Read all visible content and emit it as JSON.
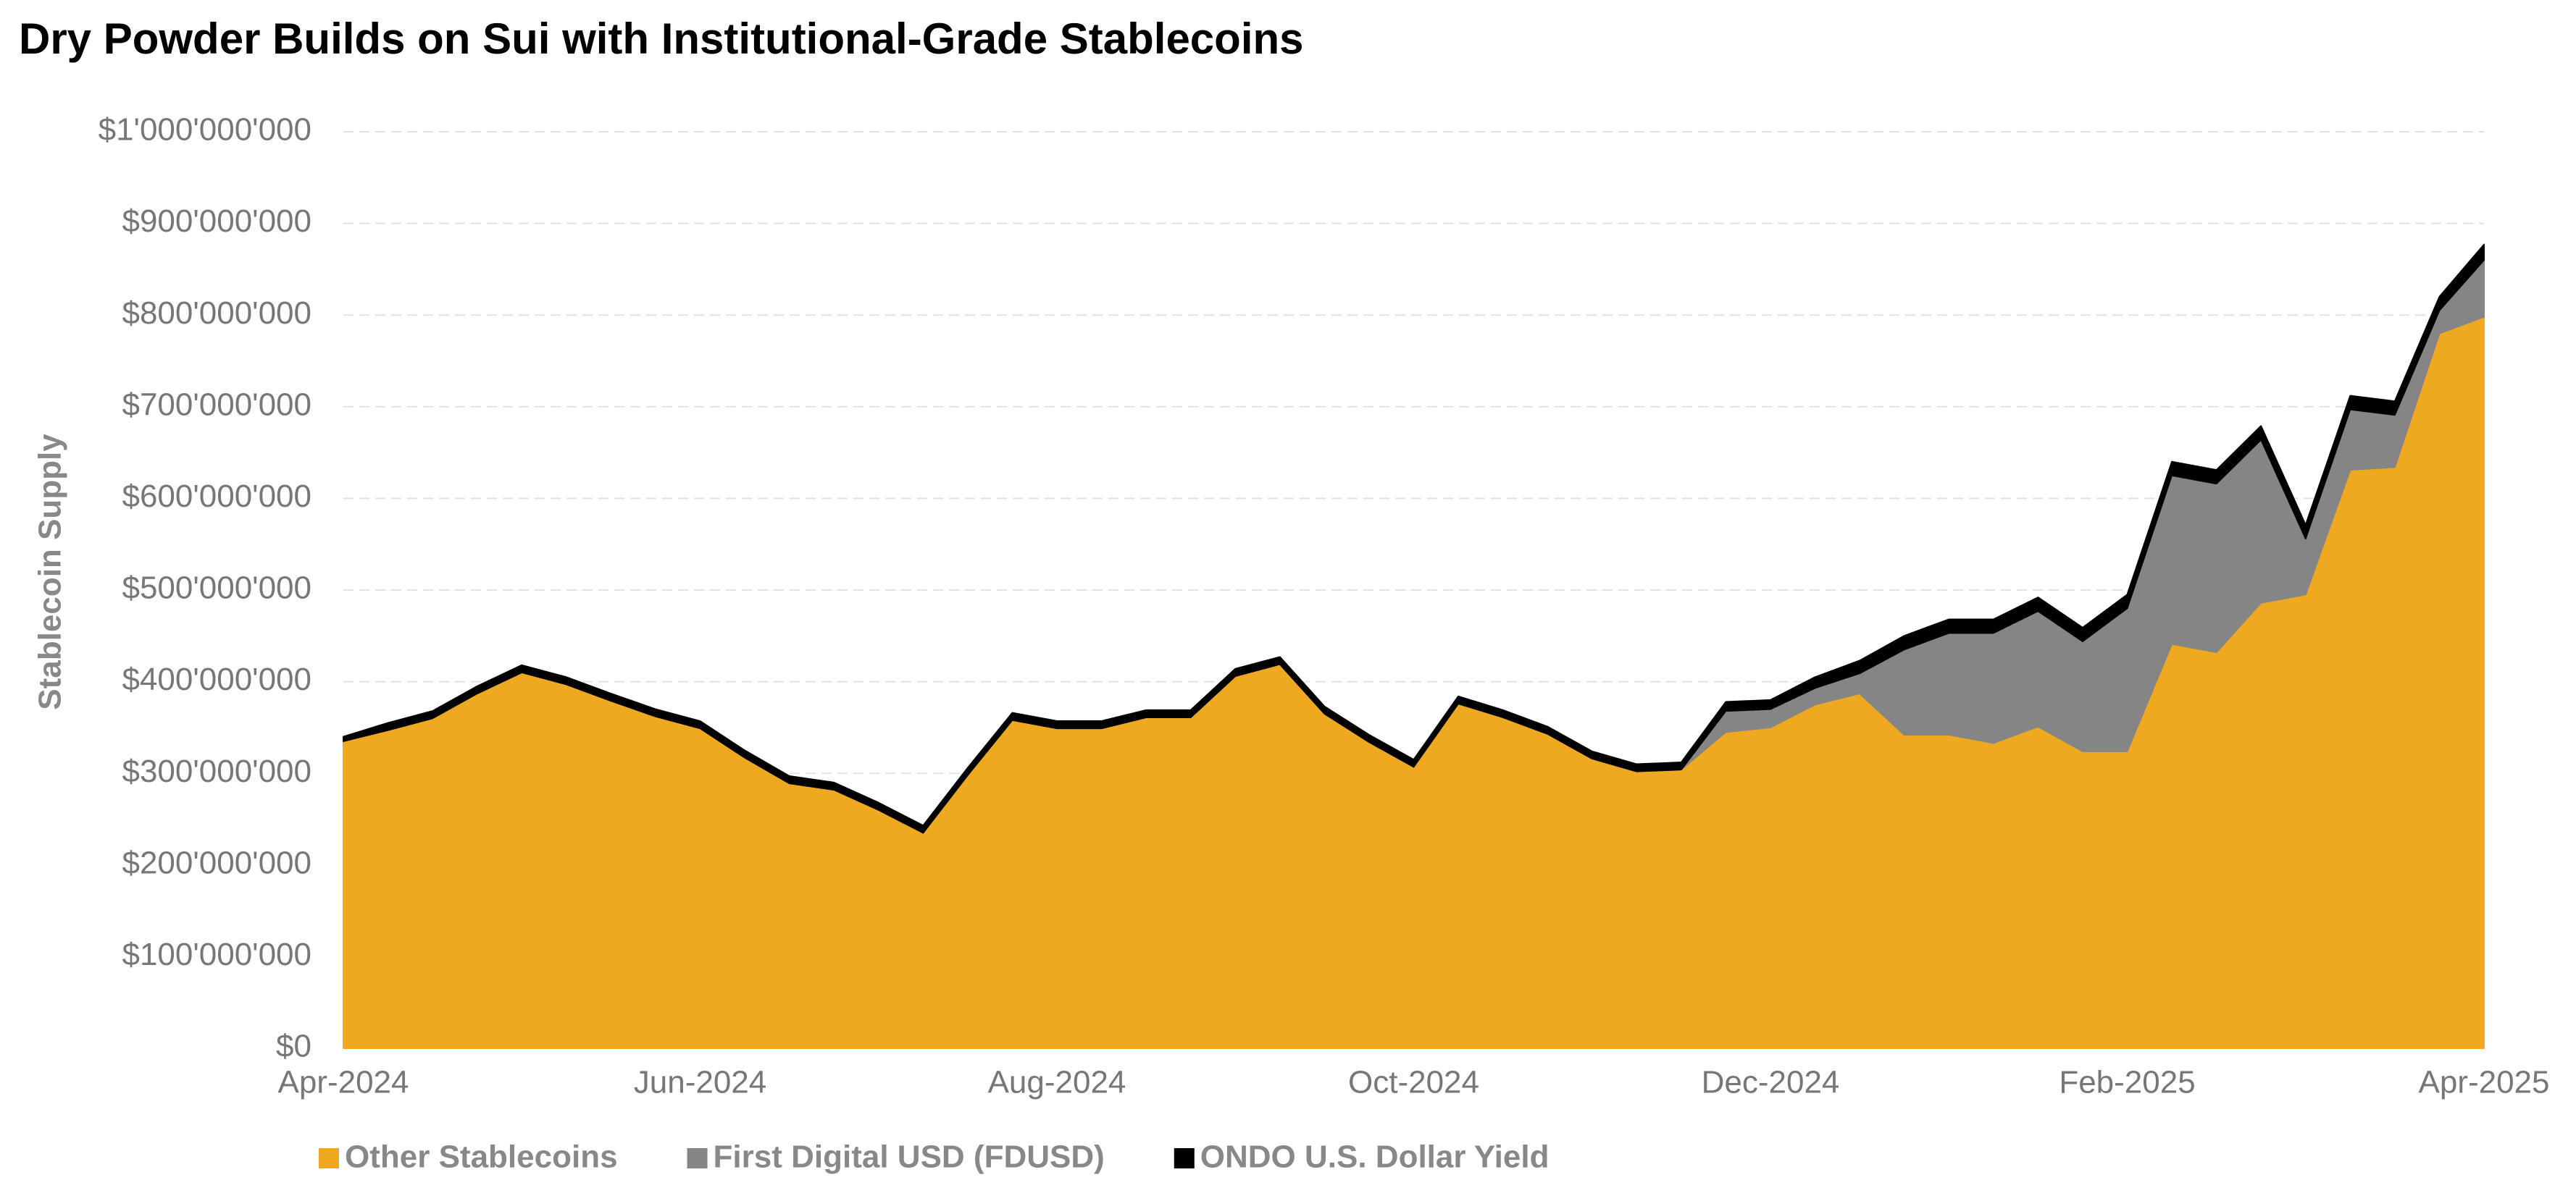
{
  "chart_data": {
    "type": "stacked_area",
    "title": "Dry Powder Builds on Sui with Institutional-Grade Stablecoins",
    "y_label": "Stablecoin Supply",
    "x": [
      0,
      0.25,
      0.5,
      0.75,
      1,
      1.25,
      1.5,
      1.75,
      2,
      2.25,
      2.5,
      2.75,
      3,
      3.25,
      3.5,
      3.75,
      4,
      4.25,
      4.5,
      4.75,
      5,
      5.25,
      5.5,
      5.75,
      6,
      6.25,
      6.5,
      6.75,
      7,
      7.25,
      7.5,
      7.75,
      8,
      8.25,
      8.5,
      8.75,
      9,
      9.25,
      9.5,
      9.75,
      10,
      10.25,
      10.5,
      10.75,
      11,
      11.25,
      11.5,
      11.75,
      12
    ],
    "xlim": [
      0,
      12
    ],
    "xticks": [
      {
        "value": 0,
        "label": "Apr-2024"
      },
      {
        "value": 2,
        "label": "Jun-2024"
      },
      {
        "value": 4,
        "label": "Aug-2024"
      },
      {
        "value": 6,
        "label": "Oct-2024"
      },
      {
        "value": 8,
        "label": "Dec-2024"
      },
      {
        "value": 10,
        "label": "Feb-2025"
      },
      {
        "value": 12,
        "label": "Apr-2025"
      }
    ],
    "ylim": [
      0,
      1000000000
    ],
    "yticks": [
      {
        "value": 0,
        "label": "$0"
      },
      {
        "value": 100000000,
        "label": "$100'000'000"
      },
      {
        "value": 200000000,
        "label": "$200'000'000"
      },
      {
        "value": 300000000,
        "label": "$300'000'000"
      },
      {
        "value": 400000000,
        "label": "$400'000'000"
      },
      {
        "value": 500000000,
        "label": "$500'000'000"
      },
      {
        "value": 600000000,
        "label": "$600'000'000"
      },
      {
        "value": 700000000,
        "label": "$700'000'000"
      },
      {
        "value": 800000000,
        "label": "$800'000'000"
      },
      {
        "value": 900000000,
        "label": "$900'000'000"
      },
      {
        "value": 1000000000,
        "label": "$1'000'000'000"
      }
    ],
    "grid": true,
    "legend": "bottom",
    "series": [
      {
        "name": "Other Stablecoins",
        "color": "#eea921",
        "values": [
          335000000,
          347000000,
          360000000,
          387000000,
          410000000,
          397000000,
          379000000,
          362000000,
          349000000,
          317000000,
          289000000,
          282000000,
          260000000,
          235000000,
          298000000,
          358000000,
          349000000,
          349000000,
          361000000,
          361000000,
          406000000,
          419000000,
          365000000,
          334000000,
          307000000,
          376000000,
          361000000,
          343000000,
          316000000,
          302000000,
          304000000,
          345000000,
          350000000,
          375000000,
          387000000,
          342000000,
          342000000,
          333000000,
          351000000,
          324000000,
          324000000,
          441000000,
          432000000,
          486000000,
          495000000,
          631000000,
          634000000,
          780000000,
          798000000
        ]
      },
      {
        "name": "First Digital USD (FDUSD)",
        "color": "#858585",
        "values": [
          0,
          0,
          0,
          0,
          0,
          0,
          0,
          0,
          0,
          0,
          0,
          0,
          0,
          0,
          0,
          0,
          0,
          0,
          0,
          0,
          0,
          0,
          0,
          0,
          0,
          0,
          0,
          0,
          0,
          0,
          0,
          23000000,
          20000000,
          18000000,
          22000000,
          93000000,
          111000000,
          120000000,
          126000000,
          120000000,
          156000000,
          184000000,
          184000000,
          178000000,
          61000000,
          66000000,
          57000000,
          25000000,
          62000000
        ]
      },
      {
        "name": "ONDO U.S. Dollar Yield",
        "color": "#000000",
        "values": [
          5000000,
          8000000,
          8000000,
          8000000,
          8000000,
          8000000,
          8000000,
          8000000,
          8000000,
          8000000,
          8000000,
          8000000,
          8000000,
          8000000,
          8000000,
          8000000,
          8000000,
          8000000,
          8000000,
          8000000,
          8000000,
          8000000,
          8000000,
          8000000,
          8000000,
          8000000,
          8000000,
          8000000,
          8000000,
          8000000,
          8000000,
          10000000,
          10000000,
          12000000,
          14000000,
          15000000,
          15000000,
          15000000,
          15000000,
          15000000,
          15000000,
          15000000,
          15000000,
          15000000,
          15000000,
          15000000,
          15000000,
          15000000,
          17000000
        ]
      }
    ]
  }
}
